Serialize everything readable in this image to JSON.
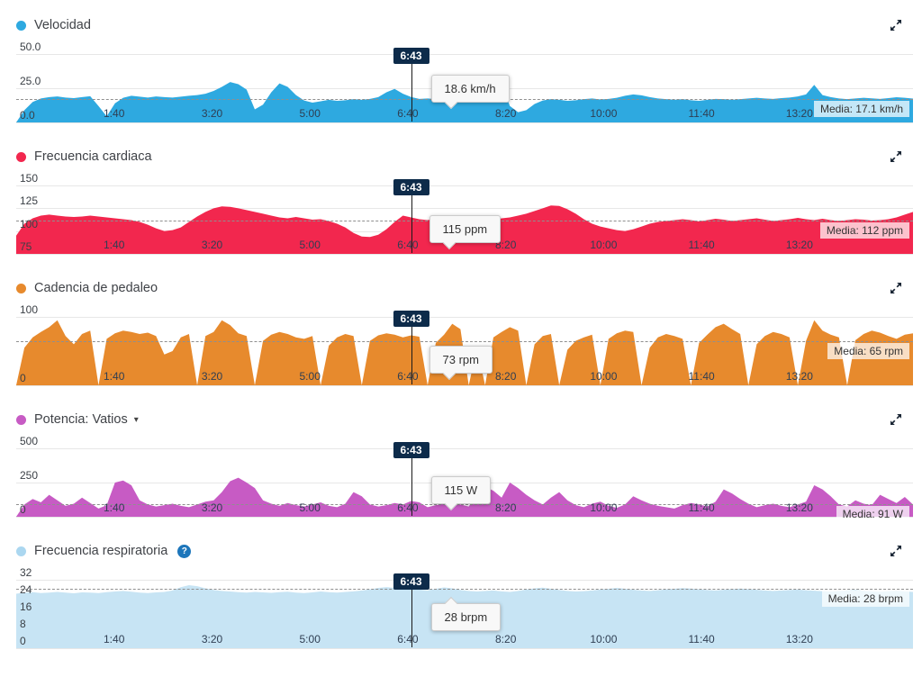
{
  "cursor": {
    "label": "6:43",
    "sec": 403
  },
  "x_axis": {
    "duration_sec": 916,
    "ticks": [
      {
        "sec": 100,
        "label": "1:40"
      },
      {
        "sec": 200,
        "label": "3:20"
      },
      {
        "sec": 300,
        "label": "5:00"
      },
      {
        "sec": 400,
        "label": "6:40"
      },
      {
        "sec": 500,
        "label": "8:20"
      },
      {
        "sec": 600,
        "label": "10:00"
      },
      {
        "sec": 700,
        "label": "11:40"
      },
      {
        "sec": 800,
        "label": "13:20"
      }
    ]
  },
  "chart_data": [
    {
      "type": "area",
      "title": "Velocidad",
      "color": "#2ea9e0",
      "dot_color": "#2ea9e0",
      "ylim": [
        0,
        50
      ],
      "yticks": [
        {
          "value": 50,
          "label": "50.0"
        },
        {
          "value": 25,
          "label": "25.0"
        },
        {
          "value": 0,
          "label": "0.0"
        }
      ],
      "average": {
        "value": 17.1,
        "label": "Media: 17.1 km/h"
      },
      "cursor_tooltip": "18.6 km/h",
      "has_dropdown": false,
      "has_help": false,
      "values": [
        0,
        9,
        15,
        17.5,
        18.5,
        19,
        18.2,
        17.8,
        18.5,
        19.2,
        12,
        4.5,
        14,
        18,
        19.5,
        18.8,
        18.2,
        19,
        18.5,
        18.2,
        18.8,
        19.5,
        20,
        21,
        23,
        26,
        29.5,
        28,
        24,
        9.5,
        13,
        22,
        28.5,
        26,
        20,
        16,
        14.5,
        15.5,
        16.5,
        15.8,
        16.2,
        17,
        16.5,
        17.2,
        18.5,
        22,
        24.5,
        21,
        18.6,
        17.2,
        17.5,
        17,
        17.8,
        18.2,
        17.5,
        17,
        17.8,
        18.5,
        24,
        28,
        12,
        7.5,
        9,
        13.5,
        16,
        17,
        16.5,
        15.8,
        16.2,
        17,
        17.5,
        16.8,
        17.2,
        18,
        19.5,
        20.5,
        19.8,
        18.5,
        17.5,
        17,
        16.5,
        17,
        16.2,
        15.8,
        16.5,
        17.2,
        17,
        16.5,
        17,
        17.5,
        18,
        17.5,
        17.2,
        17.8,
        18.2,
        19,
        20.5,
        27.5,
        20,
        18.5,
        17.5,
        17,
        17.5,
        18,
        17.6,
        17.2,
        17.8,
        18.4,
        18,
        17.4
      ]
    },
    {
      "type": "area",
      "title": "Frecuencia cardiaca",
      "color": "#f2274e",
      "dot_color": "#f2274e",
      "ylim": [
        75,
        150
      ],
      "yticks": [
        {
          "value": 150,
          "label": "150"
        },
        {
          "value": 125,
          "label": "125"
        },
        {
          "value": 100,
          "label": "100"
        },
        {
          "value": 75,
          "label": "75"
        }
      ],
      "average": {
        "value": 112,
        "label": "Media: 112 ppm"
      },
      "cursor_tooltip": "115 ppm",
      "has_dropdown": false,
      "has_help": false,
      "values": [
        95,
        108,
        114,
        117,
        118,
        117,
        116,
        115.5,
        116,
        117,
        116,
        115,
        114,
        113,
        112,
        110,
        107,
        103,
        100,
        101,
        104,
        110,
        116,
        121,
        125,
        127,
        126.5,
        125,
        123,
        121,
        119,
        117,
        115,
        114,
        115.5,
        114,
        112.5,
        113,
        111,
        108,
        104,
        98,
        94,
        93.5,
        96,
        102,
        110,
        117,
        115,
        113,
        112,
        113.5,
        115,
        114,
        112,
        110,
        108.5,
        110,
        112,
        114,
        115,
        117,
        119,
        122,
        125,
        128,
        127.5,
        124,
        119,
        113,
        108,
        105,
        103,
        101,
        100,
        102,
        105,
        108,
        110,
        111,
        112,
        113,
        112,
        110.5,
        112,
        113.5,
        112.5,
        111,
        112,
        113,
        114,
        112.5,
        111,
        112,
        113,
        114.5,
        113,
        112,
        113.5,
        112,
        111,
        112,
        113,
        112.5,
        111.5,
        112,
        113,
        115,
        118,
        121
      ]
    },
    {
      "type": "area",
      "title": "Cadencia de pedaleo",
      "color": "#e78a2d",
      "dot_color": "#e78a2d",
      "ylim": [
        0,
        100
      ],
      "yticks": [
        {
          "value": 100,
          "label": "100"
        },
        {
          "value": 0,
          "label": "0"
        }
      ],
      "average": {
        "value": 65,
        "label": "Media: 65 rpm"
      },
      "cursor_tooltip": "73 rpm",
      "has_dropdown": false,
      "has_help": false,
      "values": [
        0,
        55,
        70,
        78,
        85,
        95,
        72,
        60,
        75,
        80,
        0,
        68,
        76,
        80,
        78,
        75,
        77,
        72,
        45,
        50,
        70,
        75,
        0,
        72,
        78,
        95,
        88,
        76,
        72,
        0,
        65,
        74,
        78,
        75,
        70,
        68,
        72,
        0,
        58,
        70,
        75,
        72,
        0,
        65,
        73,
        76,
        74,
        70,
        73,
        71,
        0,
        62,
        74,
        90,
        82,
        0,
        55,
        0,
        70,
        78,
        85,
        80,
        0,
        60,
        72,
        75,
        0,
        52,
        65,
        70,
        74,
        0,
        68,
        76,
        80,
        78,
        0,
        55,
        70,
        75,
        72,
        68,
        0,
        62,
        74,
        85,
        90,
        82,
        75,
        0,
        60,
        72,
        78,
        75,
        70,
        0,
        65,
        95,
        80,
        74,
        70,
        0,
        66,
        75,
        80,
        77,
        72,
        68,
        74,
        76
      ]
    },
    {
      "type": "area",
      "title": "Potencia: Vatios",
      "color": "#c75bc4",
      "dot_color": "#c75bc4",
      "ylim": [
        0,
        500
      ],
      "yticks": [
        {
          "value": 500,
          "label": "500"
        },
        {
          "value": 250,
          "label": "250"
        },
        {
          "value": 0,
          "label": "0"
        }
      ],
      "average": {
        "value": 91,
        "label": "Media: 91 W"
      },
      "cursor_tooltip": "115 W",
      "has_dropdown": true,
      "has_help": false,
      "values": [
        0,
        90,
        130,
        105,
        160,
        120,
        80,
        95,
        140,
        100,
        60,
        85,
        250,
        265,
        230,
        120,
        90,
        75,
        85,
        95,
        80,
        70,
        90,
        110,
        120,
        180,
        260,
        285,
        250,
        210,
        120,
        95,
        80,
        100,
        85,
        75,
        90,
        105,
        80,
        70,
        95,
        180,
        150,
        90,
        75,
        85,
        100,
        90,
        115,
        105,
        70,
        85,
        95,
        120,
        90,
        75,
        160,
        220,
        190,
        140,
        250,
        210,
        160,
        120,
        90,
        140,
        180,
        120,
        85,
        70,
        95,
        110,
        80,
        65,
        90,
        150,
        120,
        95,
        80,
        70,
        60,
        85,
        100,
        90,
        75,
        110,
        200,
        170,
        130,
        95,
        70,
        85,
        95,
        80,
        70,
        90,
        110,
        230,
        200,
        150,
        90,
        75,
        120,
        95,
        85,
        160,
        130,
        100,
        145,
        90
      ]
    },
    {
      "type": "area",
      "title": "Frecuencia respiratoria",
      "color": "#c7e4f4",
      "dot_color": "#abd7f0",
      "ylim": [
        0,
        32
      ],
      "yticks": [
        {
          "value": 32,
          "label": "32"
        },
        {
          "value": 24,
          "label": "24"
        },
        {
          "value": 16,
          "label": "16"
        },
        {
          "value": 8,
          "label": "8"
        },
        {
          "value": 0,
          "label": "0"
        }
      ],
      "average": {
        "value": 28,
        "label": "Media: 28 brpm"
      },
      "cursor_tooltip": "28 brpm",
      "has_dropdown": false,
      "has_help": true,
      "help_icon_label": "?",
      "values": [
        25.5,
        26,
        26.2,
        25.8,
        26,
        26.3,
        26,
        25.7,
        26.1,
        26,
        25.8,
        26.2,
        26.5,
        26.8,
        26.4,
        26,
        25.8,
        26.1,
        26.3,
        27,
        28.5,
        29.5,
        29,
        28,
        27.2,
        26.8,
        26.5,
        26.2,
        26,
        26.3,
        26.1,
        25.9,
        26.2,
        26.4,
        26,
        25.8,
        26.1,
        26.5,
        26.2,
        26,
        26.3,
        26.6,
        27,
        27.5,
        28.2,
        28.6,
        28.2,
        27.6,
        28,
        27.4,
        27,
        27.8,
        28.4,
        28,
        27.2,
        26.8,
        26.5,
        26.8,
        27,
        26.6,
        26.3,
        26.8,
        27.4,
        28,
        28.3,
        27.8,
        27.2,
        26.8,
        26.5,
        26.7,
        27,
        27.4,
        27.8,
        28.2,
        27.8,
        27.3,
        27,
        26.8,
        27.1,
        27.5,
        27.8,
        28.1,
        27.9,
        27.5,
        27.2,
        27,
        27.3,
        27.6,
        27.9,
        27.6,
        27.3,
        27,
        26.8,
        27,
        27.2,
        27.4,
        27.1,
        26.9,
        26.7,
        26.5,
        26.8,
        27,
        27.2,
        26.9,
        26.6,
        26.4,
        26.7,
        26.9,
        26.6,
        26.3
      ]
    }
  ],
  "icons": {
    "expand": "expand-icon",
    "help": "help-icon",
    "dropdown": "chevron-down-icon"
  }
}
